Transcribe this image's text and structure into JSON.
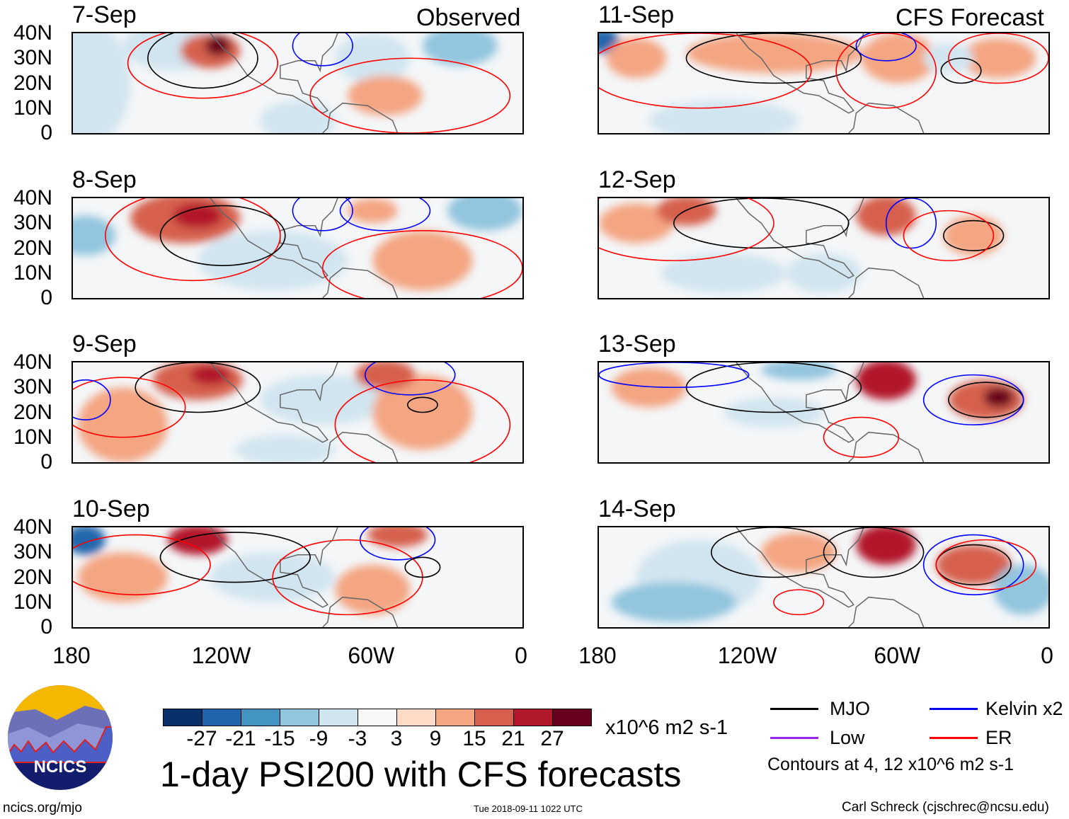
{
  "headers": {
    "observed": "Observed",
    "forecast": "CFS Forecast"
  },
  "lat_labels": [
    "40N",
    "30N",
    "20N",
    "10N",
    "0"
  ],
  "lon_labels": [
    "180",
    "120W",
    "60W",
    "0"
  ],
  "panels": [
    {
      "date": "7-Sep",
      "col": 0,
      "row": 0,
      "blobs": [
        [
          -175,
          20,
          18,
          25,
          -9
        ],
        [
          -140,
          35,
          20,
          10,
          -9
        ],
        [
          -125,
          33,
          12,
          7,
          15
        ],
        [
          -122,
          35,
          5,
          4,
          27
        ],
        [
          -25,
          35,
          15,
          8,
          -15
        ],
        [
          -60,
          30,
          15,
          10,
          -9
        ],
        [
          -90,
          5,
          15,
          8,
          -9
        ],
        [
          -55,
          15,
          15,
          8,
          9
        ]
      ],
      "contours": [
        [
          -128,
          30,
          22,
          12,
          "MJO"
        ],
        [
          -128,
          28,
          30,
          14,
          "ER"
        ],
        [
          -80,
          35,
          12,
          8,
          "Kelvin"
        ],
        [
          -45,
          15,
          40,
          15,
          "ER"
        ]
      ]
    },
    {
      "date": "8-Sep",
      "col": 0,
      "row": 1,
      "blobs": [
        [
          -135,
          32,
          22,
          10,
          15
        ],
        [
          -130,
          33,
          10,
          5,
          21
        ],
        [
          -175,
          25,
          12,
          8,
          -15
        ],
        [
          -15,
          35,
          15,
          8,
          -15
        ],
        [
          -100,
          15,
          30,
          12,
          -9
        ],
        [
          -40,
          15,
          20,
          12,
          9
        ],
        [
          -60,
          35,
          10,
          5,
          9
        ]
      ],
      "contours": [
        [
          -132,
          25,
          35,
          18,
          "ER"
        ],
        [
          -120,
          25,
          25,
          12,
          "MJO"
        ],
        [
          -80,
          35,
          12,
          8,
          "Kelvin"
        ],
        [
          -55,
          35,
          18,
          8,
          "Kelvin"
        ],
        [
          -40,
          12,
          40,
          15,
          "ER"
        ]
      ]
    },
    {
      "date": "9-Sep",
      "col": 0,
      "row": 2,
      "blobs": [
        [
          -160,
          15,
          18,
          15,
          9
        ],
        [
          -130,
          33,
          18,
          8,
          15
        ],
        [
          -125,
          35,
          8,
          4,
          21
        ],
        [
          -80,
          25,
          25,
          10,
          -9
        ],
        [
          -40,
          20,
          20,
          15,
          9
        ],
        [
          -95,
          5,
          20,
          6,
          -9
        ],
        [
          -55,
          35,
          12,
          6,
          15
        ]
      ],
      "contours": [
        [
          -130,
          30,
          25,
          10,
          "MJO"
        ],
        [
          -160,
          22,
          25,
          12,
          "ER"
        ],
        [
          -175,
          25,
          10,
          8,
          "Kelvin"
        ],
        [
          -45,
          35,
          18,
          8,
          "Kelvin"
        ],
        [
          -40,
          15,
          35,
          18,
          "ER"
        ],
        [
          -40,
          23,
          6,
          3,
          "MJO"
        ]
      ]
    },
    {
      "date": "10-Sep",
      "col": 0,
      "row": 3,
      "blobs": [
        [
          -175,
          35,
          8,
          6,
          -27
        ],
        [
          -130,
          35,
          12,
          6,
          21
        ],
        [
          -160,
          20,
          18,
          10,
          9
        ],
        [
          -60,
          15,
          15,
          10,
          9
        ],
        [
          -50,
          37,
          12,
          5,
          15
        ],
        [
          -100,
          20,
          25,
          10,
          -9
        ]
      ],
      "contours": [
        [
          -115,
          28,
          30,
          10,
          "MJO"
        ],
        [
          -155,
          25,
          30,
          12,
          "ER"
        ],
        [
          -50,
          35,
          15,
          8,
          "Kelvin"
        ],
        [
          -70,
          20,
          30,
          15,
          "ER"
        ],
        [
          -40,
          24,
          7,
          4,
          "MJO"
        ]
      ]
    },
    {
      "date": "11-Sep",
      "col": 1,
      "row": 0,
      "blobs": [
        [
          -178,
          37,
          6,
          5,
          -27
        ],
        [
          -165,
          30,
          12,
          8,
          9
        ],
        [
          -110,
          32,
          35,
          8,
          9
        ],
        [
          -60,
          30,
          15,
          10,
          9
        ],
        [
          -130,
          5,
          30,
          8,
          -9
        ],
        [
          -20,
          30,
          15,
          8,
          9
        ],
        [
          -40,
          30,
          10,
          6,
          -9
        ]
      ],
      "contours": [
        [
          -110,
          30,
          35,
          10,
          "MJO"
        ],
        [
          -140,
          25,
          45,
          15,
          "ER"
        ],
        [
          -65,
          25,
          20,
          15,
          "ER"
        ],
        [
          -65,
          35,
          12,
          6,
          "Kelvin"
        ],
        [
          -35,
          25,
          8,
          5,
          "MJO"
        ],
        [
          -20,
          30,
          20,
          10,
          "ER"
        ]
      ]
    },
    {
      "date": "12-Sep",
      "col": 1,
      "row": 1,
      "blobs": [
        [
          -165,
          30,
          15,
          8,
          9
        ],
        [
          -145,
          35,
          12,
          6,
          15
        ],
        [
          -65,
          33,
          12,
          8,
          15
        ],
        [
          -30,
          25,
          12,
          8,
          9
        ],
        [
          -130,
          10,
          25,
          8,
          -9
        ],
        [
          -90,
          10,
          15,
          8,
          -9
        ]
      ],
      "contours": [
        [
          -115,
          30,
          35,
          10,
          "MJO"
        ],
        [
          -150,
          30,
          40,
          15,
          "ER"
        ],
        [
          -55,
          30,
          10,
          10,
          "Kelvin"
        ],
        [
          -30,
          25,
          12,
          6,
          "MJO"
        ],
        [
          -40,
          25,
          18,
          10,
          "ER"
        ]
      ]
    },
    {
      "date": "13-Sep",
      "col": 1,
      "row": 2,
      "blobs": [
        [
          -160,
          30,
          15,
          8,
          9
        ],
        [
          -65,
          33,
          12,
          8,
          21
        ],
        [
          -25,
          25,
          15,
          8,
          15
        ],
        [
          -20,
          26,
          6,
          4,
          27
        ],
        [
          -110,
          20,
          20,
          6,
          -9
        ],
        [
          -100,
          37,
          15,
          4,
          -15
        ]
      ],
      "contours": [
        [
          -110,
          30,
          35,
          10,
          "MJO"
        ],
        [
          -25,
          25,
          15,
          7,
          "MJO"
        ],
        [
          -30,
          25,
          20,
          10,
          "Kelvin"
        ],
        [
          -75,
          10,
          15,
          8,
          "ER"
        ],
        [
          -150,
          35,
          30,
          5,
          "Kelvin"
        ]
      ]
    },
    {
      "date": "14-Sep",
      "col": 1,
      "row": 3,
      "blobs": [
        [
          -65,
          33,
          12,
          8,
          21
        ],
        [
          -30,
          25,
          15,
          8,
          15
        ],
        [
          -140,
          20,
          25,
          15,
          -9
        ],
        [
          -150,
          10,
          25,
          8,
          -15
        ],
        [
          -100,
          30,
          15,
          8,
          9
        ],
        [
          -10,
          15,
          12,
          10,
          -15
        ]
      ],
      "contours": [
        [
          -110,
          30,
          25,
          10,
          "MJO"
        ],
        [
          -70,
          30,
          20,
          10,
          "MJO"
        ],
        [
          -30,
          25,
          15,
          8,
          "MJO"
        ],
        [
          -30,
          25,
          20,
          12,
          "Kelvin"
        ],
        [
          -100,
          10,
          10,
          5,
          "ER"
        ],
        [
          -25,
          25,
          20,
          10,
          "ER"
        ]
      ]
    }
  ],
  "colorbar": {
    "colors": [
      "#08306b",
      "#2166ac",
      "#4393c3",
      "#92c5de",
      "#d1e5f0",
      "#f7f7f7",
      "#fddbc7",
      "#f4a582",
      "#d6604d",
      "#b2182b",
      "#67001f"
    ],
    "labels": [
      "-27",
      "-21",
      "-15",
      "-9",
      "-3",
      "3",
      "9",
      "15",
      "21",
      "27"
    ],
    "units": "x10^6 m2 s-1"
  },
  "legend": {
    "items": [
      {
        "label": "MJO",
        "color": "#000000"
      },
      {
        "label": "Kelvin x2",
        "color": "#0000ff"
      },
      {
        "label": "Low",
        "color": "#a020f0"
      },
      {
        "label": "ER",
        "color": "#ff0000"
      }
    ],
    "note": "Contours at 4, 12 x10^6 m2 s-1"
  },
  "title": "1-day PSI200 with CFS forecasts",
  "logo_text": "NCICS",
  "footer": {
    "url": "ncics.org/mjo",
    "timestamp": "Tue 2018-09-11 1022 UTC",
    "author": "Carl Schreck (cjschrec@ncsu.edu)"
  }
}
